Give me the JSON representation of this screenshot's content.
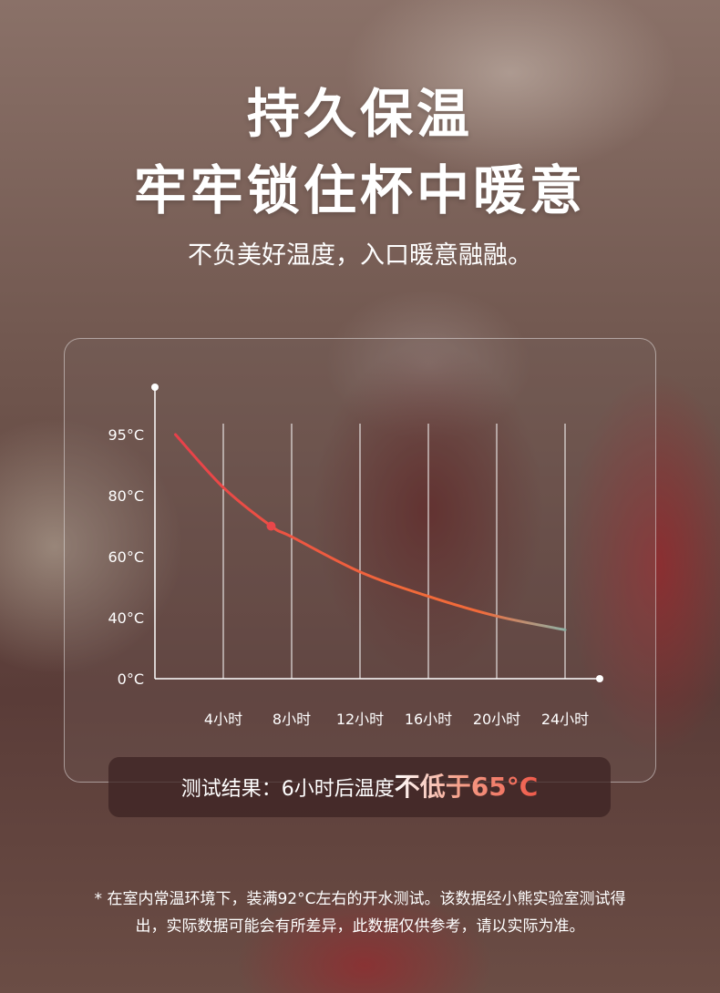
{
  "header": {
    "title_line1": "持久保温",
    "title_line2": "牢牢锁住杯中暖意",
    "subtitle": "不负美好温度，入口暖意融融。"
  },
  "result": {
    "prefix": "测试结果：6小时后温度",
    "highlight": "不低于65°C"
  },
  "footnote": {
    "line1": "* 在室内常温环境下，装满92°C左右的开水测试。该数据经小熊实验室测试得",
    "line2": "出，实际数据可能会有所差异，此数据仅供参考，请以实际为准。"
  },
  "colors": {
    "curve_start": "#e8404a",
    "curve_mid": "#f26a3a",
    "curve_end": "#8fb0a4",
    "marker": "#e8474a"
  },
  "chart_data": {
    "type": "line",
    "title": "",
    "xlabel": "",
    "ylabel": "",
    "x_ticks": [
      {
        "value": 4,
        "label": "4小时"
      },
      {
        "value": 8,
        "label": "8小时"
      },
      {
        "value": 12,
        "label": "12小时"
      },
      {
        "value": 16,
        "label": "16小时"
      },
      {
        "value": 20,
        "label": "20小时"
      },
      {
        "value": 24,
        "label": "24小时"
      }
    ],
    "y_ticks": [
      {
        "value": 0,
        "label": "0°C"
      },
      {
        "value": 40,
        "label": "40°C"
      },
      {
        "value": 60,
        "label": "60°C"
      },
      {
        "value": 80,
        "label": "80°C"
      },
      {
        "value": 95,
        "label": "95°C"
      }
    ],
    "y_scale": "non-uniform (equally spaced tick labels)",
    "xlim": [
      0,
      26
    ],
    "grid": "vertical",
    "series": [
      {
        "x": [
          1.2,
          4,
          6.8,
          8,
          12,
          16,
          20,
          24
        ],
        "y": [
          95,
          82,
          70,
          66.5,
          55,
          47,
          40.5,
          32
        ]
      }
    ],
    "marker": {
      "x": 6.8,
      "y": 70
    }
  }
}
